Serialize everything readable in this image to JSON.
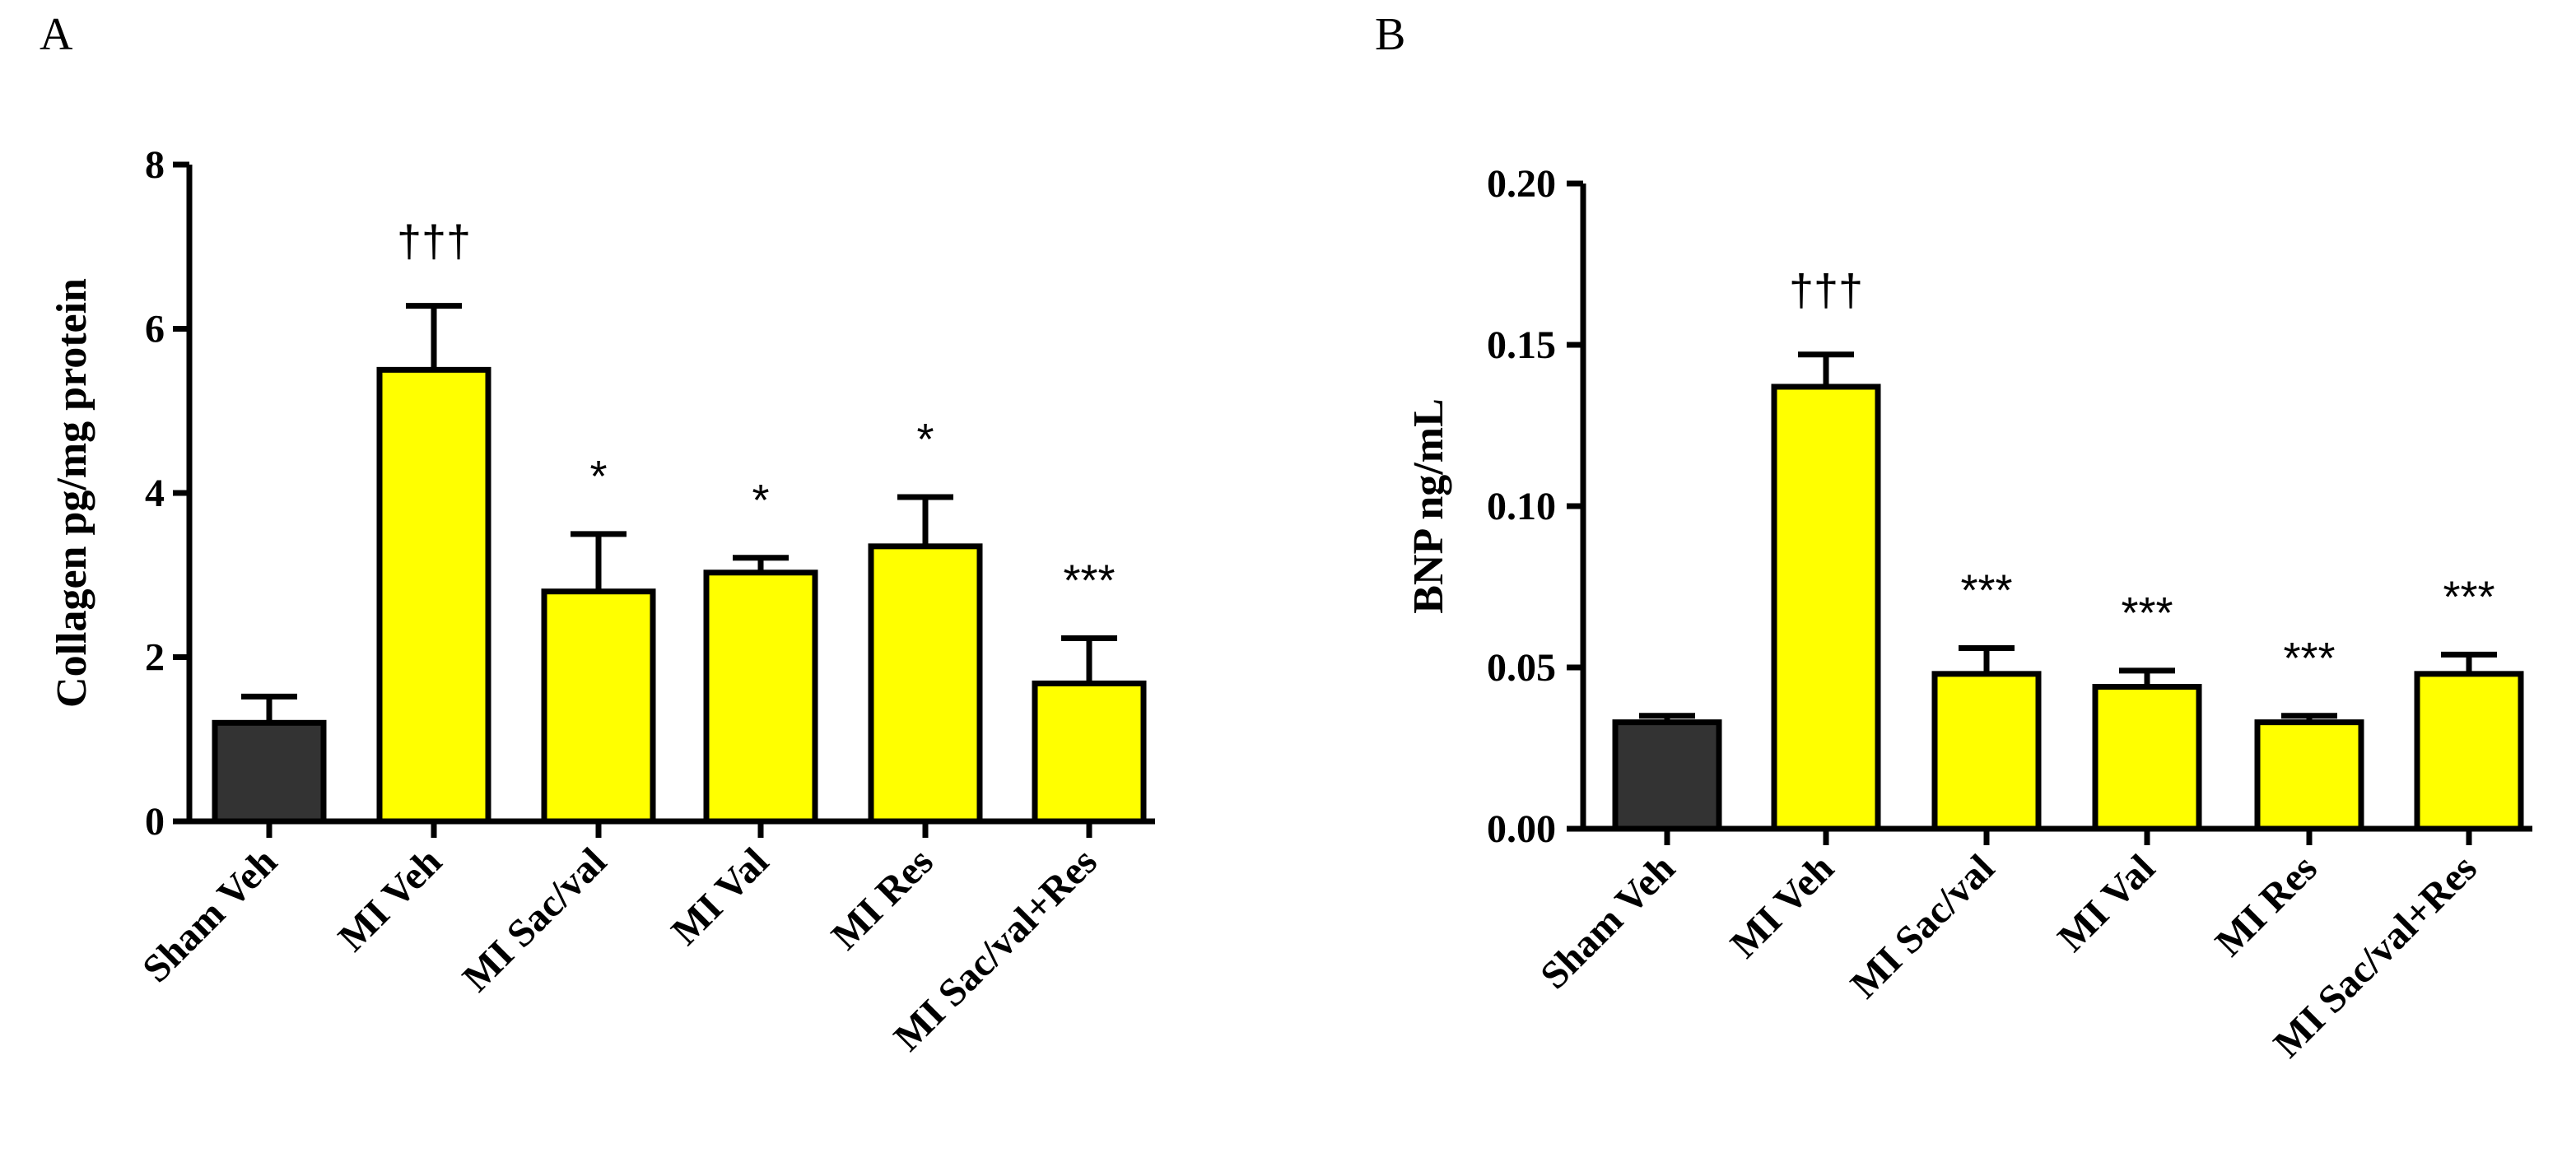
{
  "chart_data": [
    {
      "type": "bar",
      "panel_label": "A",
      "categories": [
        "Sham Veh",
        "MI Veh",
        "MI Sac/val",
        "MI Val",
        "MI Res",
        "MI Sac/val+Res"
      ],
      "values": [
        1.2,
        5.5,
        2.8,
        3.03,
        3.35,
        1.68
      ],
      "errors": [
        0.32,
        0.78,
        0.7,
        0.18,
        0.6,
        0.55
      ],
      "colors": [
        "#333333",
        "#ffff00",
        "#ffff00",
        "#ffff00",
        "#ffff00",
        "#ffff00"
      ],
      "significance": [
        "",
        "†††",
        "*",
        "*",
        "*",
        "***"
      ],
      "ylabel": "Collagen pg/mg protein",
      "xlabel": "",
      "ylim": [
        0,
        8
      ],
      "yticks": [
        0,
        2,
        4,
        6,
        8
      ],
      "ytick_labels": [
        "0",
        "2",
        "4",
        "6",
        "8"
      ]
    },
    {
      "type": "bar",
      "panel_label": "B",
      "categories": [
        "Sham Veh",
        "MI Veh",
        "MI Sac/val",
        "MI Val",
        "MI Res",
        "MI Sac/val+Res"
      ],
      "values": [
        0.033,
        0.137,
        0.048,
        0.044,
        0.033,
        0.048
      ],
      "errors": [
        0.002,
        0.01,
        0.008,
        0.005,
        0.002,
        0.006
      ],
      "colors": [
        "#333333",
        "#ffff00",
        "#ffff00",
        "#ffff00",
        "#ffff00",
        "#ffff00"
      ],
      "significance": [
        "",
        "†††",
        "***",
        "***",
        "***",
        "***"
      ],
      "ylabel": "BNP ng/mL",
      "xlabel": "",
      "ylim": [
        0,
        0.2
      ],
      "yticks": [
        0,
        0.05,
        0.1,
        0.15,
        0.2
      ],
      "ytick_labels": [
        "0.00",
        "0.05",
        "0.10",
        "0.15",
        "0.20"
      ]
    }
  ]
}
